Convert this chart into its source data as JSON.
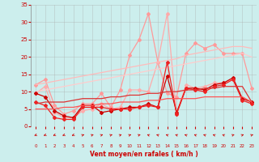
{
  "xlabel": "Vent moyen/en rafales ( km/h )",
  "x": [
    0,
    1,
    2,
    3,
    4,
    5,
    6,
    7,
    8,
    9,
    10,
    11,
    12,
    13,
    14,
    15,
    16,
    17,
    18,
    19,
    20,
    21,
    22,
    23
  ],
  "background_color": "#cceeed",
  "grid_color": "#aaaaaa",
  "series": [
    {
      "name": "rafales_light",
      "color": "#ff9999",
      "lw": 0.9,
      "marker": "D",
      "markersize": 2.0,
      "values": [
        12.0,
        13.5,
        6.0,
        3.5,
        4.5,
        6.5,
        6.5,
        9.5,
        5.5,
        10.5,
        20.5,
        25.0,
        32.5,
        18.5,
        9.5,
        8.5,
        21.0,
        24.0,
        22.5,
        23.5,
        21.0,
        21.0,
        21.0,
        11.0
      ]
    },
    {
      "name": "moy_light",
      "color": "#ffaaaa",
      "lw": 0.9,
      "marker": "D",
      "markersize": 2.0,
      "values": [
        9.5,
        11.5,
        4.0,
        2.5,
        2.5,
        4.5,
        5.0,
        6.5,
        5.0,
        5.5,
        10.5,
        10.5,
        10.0,
        18.5,
        32.5,
        3.5,
        12.0,
        11.0,
        11.5,
        12.5,
        12.5,
        13.5,
        8.0,
        7.0
      ]
    },
    {
      "name": "trend_rafales_light",
      "color": "#ffbbbb",
      "lw": 0.9,
      "marker": null,
      "markersize": 0,
      "values": [
        12.0,
        12.5,
        13.0,
        13.5,
        14.0,
        14.5,
        15.0,
        15.5,
        16.0,
        16.5,
        17.0,
        17.5,
        18.0,
        18.5,
        19.0,
        19.5,
        20.5,
        21.0,
        21.5,
        22.0,
        22.5,
        23.0,
        23.0,
        22.5
      ]
    },
    {
      "name": "trend_moy_light",
      "color": "#ffcccc",
      "lw": 0.9,
      "marker": null,
      "markersize": 0,
      "values": [
        10.0,
        10.5,
        11.0,
        11.5,
        12.0,
        12.5,
        13.0,
        13.5,
        14.0,
        14.5,
        15.0,
        15.5,
        16.0,
        16.5,
        17.0,
        17.5,
        18.0,
        18.5,
        19.0,
        19.5,
        20.0,
        20.5,
        21.0,
        20.0
      ]
    },
    {
      "name": "rafales_dark",
      "color": "#cc0000",
      "lw": 0.9,
      "marker": "D",
      "markersize": 2.0,
      "values": [
        9.5,
        8.5,
        4.5,
        3.0,
        2.5,
        6.0,
        6.0,
        4.0,
        4.5,
        5.0,
        5.5,
        5.5,
        6.5,
        5.5,
        14.5,
        4.0,
        11.0,
        11.0,
        10.5,
        12.0,
        12.5,
        14.0,
        8.0,
        7.0
      ]
    },
    {
      "name": "moy_dark",
      "color": "#ee2222",
      "lw": 0.9,
      "marker": "D",
      "markersize": 2.0,
      "values": [
        7.0,
        6.0,
        2.5,
        2.0,
        2.0,
        5.5,
        5.5,
        5.5,
        5.0,
        5.0,
        5.0,
        5.5,
        6.0,
        5.5,
        18.5,
        3.5,
        11.0,
        10.5,
        10.0,
        11.5,
        12.0,
        13.5,
        7.5,
        6.5
      ]
    },
    {
      "name": "trend_rafales_dark",
      "color": "#dd3333",
      "lw": 0.9,
      "marker": null,
      "markersize": 0,
      "values": [
        6.5,
        7.0,
        7.0,
        7.0,
        7.5,
        8.0,
        8.0,
        8.0,
        8.5,
        8.5,
        9.0,
        9.0,
        9.5,
        9.5,
        10.0,
        10.0,
        10.5,
        10.5,
        11.0,
        11.0,
        11.5,
        11.5,
        11.5,
        7.0
      ]
    },
    {
      "name": "trend_moy_dark",
      "color": "#ff5555",
      "lw": 0.9,
      "marker": null,
      "markersize": 0,
      "values": [
        5.0,
        5.0,
        5.0,
        5.5,
        5.5,
        6.0,
        6.0,
        6.5,
        6.5,
        7.0,
        7.0,
        7.0,
        7.5,
        7.5,
        8.0,
        8.0,
        8.0,
        8.0,
        8.5,
        8.5,
        8.5,
        8.5,
        8.5,
        7.0
      ]
    }
  ],
  "ylim": [
    0,
    35
  ],
  "yticks": [
    0,
    5,
    10,
    15,
    20,
    25,
    30,
    35
  ],
  "xticks": [
    0,
    1,
    2,
    3,
    4,
    5,
    6,
    7,
    8,
    9,
    10,
    11,
    12,
    13,
    14,
    15,
    16,
    17,
    18,
    19,
    20,
    21,
    22,
    23
  ],
  "xlabel_color": "#cc0000",
  "ytick_color": "#cc0000",
  "xtick_color": "#cc0000",
  "arrow_color": "#cc0000",
  "arrow_angles": [
    225,
    225,
    225,
    225,
    225,
    45,
    45,
    45,
    45,
    45,
    45,
    45,
    315,
    315,
    315,
    315,
    315,
    315,
    315,
    315,
    315,
    45,
    45,
    45
  ]
}
